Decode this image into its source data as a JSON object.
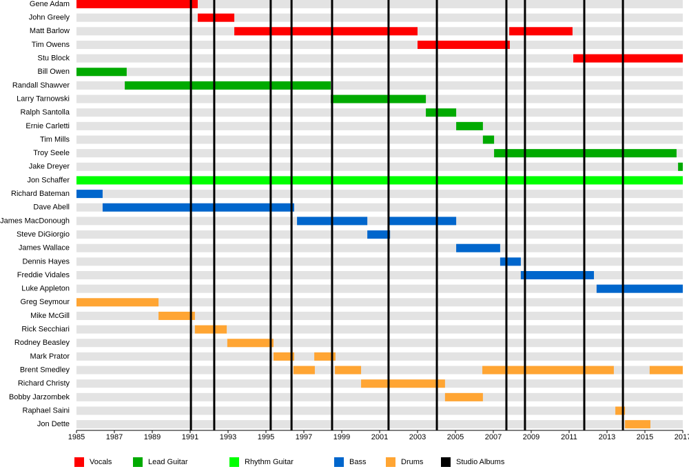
{
  "chart_data": {
    "type": "timeline",
    "xlim": [
      1985,
      2017
    ],
    "xticks": [
      1985,
      1987,
      1989,
      1991,
      1993,
      1995,
      1997,
      1999,
      2001,
      2003,
      2005,
      2007,
      2009,
      2011,
      2013,
      2015,
      2017
    ],
    "row_background": "#e3e3e3",
    "series": [
      {
        "name": "Vocals",
        "color": "#ff0000",
        "members": [
          {
            "name": "Gene Adam",
            "spans": [
              [
                1985,
                1991.4
              ]
            ]
          },
          {
            "name": "John Greely",
            "spans": [
              [
                1991.4,
                1993.33
              ]
            ]
          },
          {
            "name": "Matt Barlow",
            "spans": [
              [
                1993.33,
                2003.0
              ],
              [
                2007.84,
                2011.18
              ]
            ]
          },
          {
            "name": "Tim Owens",
            "spans": [
              [
                2003.0,
                2007.87
              ]
            ]
          },
          {
            "name": "Stu Block",
            "spans": [
              [
                2011.22,
                2017
              ]
            ]
          }
        ]
      },
      {
        "name": "Lead Guitar",
        "color": "#00aa00",
        "members": [
          {
            "name": "Bill Owen",
            "spans": [
              [
                1985,
                1987.65
              ]
            ]
          },
          {
            "name": "Randall Shawver",
            "spans": [
              [
                1987.55,
                1998.42
              ]
            ]
          },
          {
            "name": "Larry Tarnowski",
            "spans": [
              [
                1998.42,
                2003.44
              ]
            ]
          },
          {
            "name": "Ralph Santolla",
            "spans": [
              [
                2003.44,
                2005.04
              ]
            ]
          },
          {
            "name": "Ernie Carletti",
            "spans": [
              [
                2005.04,
                2006.45
              ]
            ]
          },
          {
            "name": "Tim Mills",
            "spans": [
              [
                2006.45,
                2007.04
              ]
            ]
          },
          {
            "name": "Troy Seele",
            "spans": [
              [
                2007.04,
                2016.67
              ]
            ]
          },
          {
            "name": "Jake Dreyer",
            "spans": [
              [
                2016.75,
                2017
              ]
            ]
          }
        ]
      },
      {
        "name": "Rhythm Guitar",
        "color": "#00ff00",
        "members": [
          {
            "name": "Jon Schaffer",
            "spans": [
              [
                1985,
                2017
              ]
            ]
          }
        ]
      },
      {
        "name": "Bass",
        "color": "#0066cc",
        "members": [
          {
            "name": "Richard Bateman",
            "spans": [
              [
                1985,
                1986.38
              ]
            ]
          },
          {
            "name": "Dave Abell",
            "spans": [
              [
                1986.38,
                1996.49
              ]
            ]
          },
          {
            "name": "James MacDonough",
            "spans": [
              [
                1996.64,
                2000.35
              ],
              [
                2001.51,
                2005.04
              ]
            ]
          },
          {
            "name": "Steve DiGiorgio",
            "spans": [
              [
                2000.35,
                2001.55
              ]
            ]
          },
          {
            "name": "James Wallace",
            "spans": [
              [
                2005.04,
                2007.36
              ]
            ]
          },
          {
            "name": "Dennis Hayes",
            "spans": [
              [
                2007.36,
                2008.45
              ]
            ]
          },
          {
            "name": "Freddie Vidales",
            "spans": [
              [
                2008.45,
                2012.31
              ]
            ]
          },
          {
            "name": "Luke Appleton",
            "spans": [
              [
                2012.45,
                2017
              ]
            ]
          }
        ]
      },
      {
        "name": "Drums",
        "color": "#ffa533",
        "members": [
          {
            "name": "Greg Seymour",
            "spans": [
              [
                1985,
                1989.33
              ]
            ]
          },
          {
            "name": "Mike McGill",
            "spans": [
              [
                1989.33,
                1991.25
              ]
            ]
          },
          {
            "name": "Rick Secchiari",
            "spans": [
              [
                1991.25,
                1992.93
              ]
            ]
          },
          {
            "name": "Rodney Beasley",
            "spans": [
              [
                1992.96,
                1995.4
              ]
            ]
          },
          {
            "name": "Mark Prator",
            "spans": [
              [
                1995.4,
                1996.49
              ],
              [
                1997.55,
                1998.67
              ]
            ]
          },
          {
            "name": "Brent Smedley",
            "spans": [
              [
                1996.45,
                1997.58
              ],
              [
                1998.64,
                2000.02
              ],
              [
                2006.42,
                2013.36
              ],
              [
                2015.25,
                2017
              ]
            ]
          },
          {
            "name": "Richard Christy",
            "spans": [
              [
                2000.02,
                2004.45
              ]
            ]
          },
          {
            "name": "Bobby Jarzombek",
            "spans": [
              [
                2004.45,
                2006.45
              ]
            ]
          },
          {
            "name": "Raphael Saini",
            "spans": [
              [
                2013.44,
                2013.95
              ]
            ]
          },
          {
            "name": "Jon Dette",
            "spans": [
              [
                2013.95,
                2015.29
              ]
            ]
          }
        ]
      },
      {
        "name": "Studio Albums",
        "color": "#000000",
        "values": [
          1991.04,
          1992.27,
          1995.25,
          1996.35,
          1998.49,
          2001.47,
          2004.02,
          2007.69,
          2008.67,
          2011.8,
          2013.84
        ]
      }
    ]
  }
}
